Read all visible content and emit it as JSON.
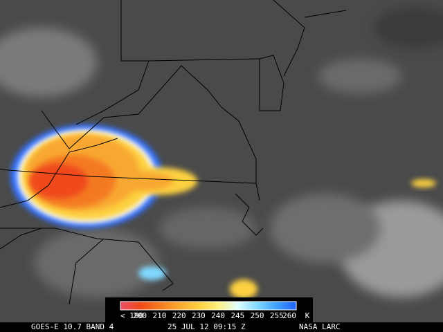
{
  "colorbar": {
    "labels": [
      "< 190",
      "200",
      "210",
      "220",
      "230",
      "240",
      "245",
      "250",
      "255",
      "260"
    ],
    "unit": "K",
    "colors": [
      "#e8506a",
      "#f04a1a",
      "#f47a20",
      "#f8a830",
      "#fcd040",
      "#fff080",
      "#e0ffff",
      "#80d8ff",
      "#40a0ff",
      "#2060ff"
    ]
  },
  "caption": {
    "satellite": "GOES-E 10.7 BAND 4",
    "time": "25 JUL 12 09:15 Z",
    "source": "NASA LARC"
  }
}
